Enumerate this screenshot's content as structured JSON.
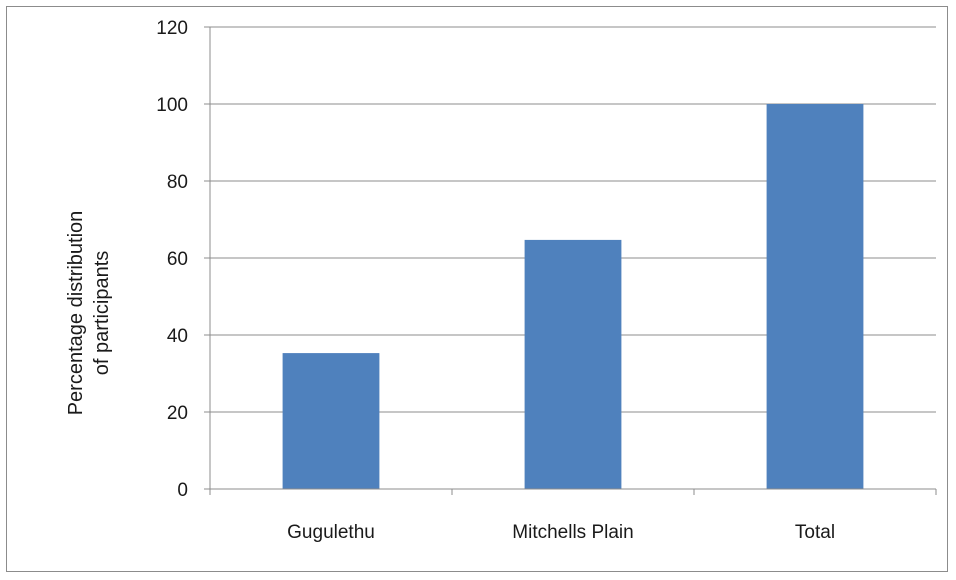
{
  "chart_data": {
    "type": "bar",
    "categories": [
      "Gugulethu",
      "Mitchells Plain",
      "Total"
    ],
    "values": [
      35.3,
      64.7,
      100
    ],
    "title": "",
    "xlabel": "",
    "ylabel": [
      "Percentage distribution",
      "of participants"
    ],
    "ylim": [
      0,
      120
    ],
    "yticks": [
      0,
      20,
      40,
      60,
      80,
      100,
      120
    ],
    "grid": true,
    "legend": "none",
    "bar_color": "#4f81bd"
  }
}
